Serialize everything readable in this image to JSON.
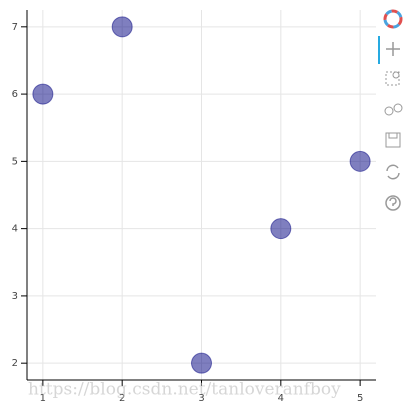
{
  "chart_data": {
    "type": "scatter",
    "series": [
      {
        "color": "navy",
        "x": [
          1,
          2,
          3,
          4,
          5
        ],
        "values": [
          6,
          7,
          2,
          4,
          5
        ]
      }
    ],
    "xlim": [
      0.8,
      5.2
    ],
    "ylim": [
      1.75,
      7.25
    ],
    "xticks": [
      1,
      2,
      3,
      4,
      5
    ],
    "yticks": [
      2,
      3,
      4,
      5,
      6,
      7
    ],
    "grid": true,
    "watermark": "https://blog.csdn.net/tanloveranfboy"
  }
}
